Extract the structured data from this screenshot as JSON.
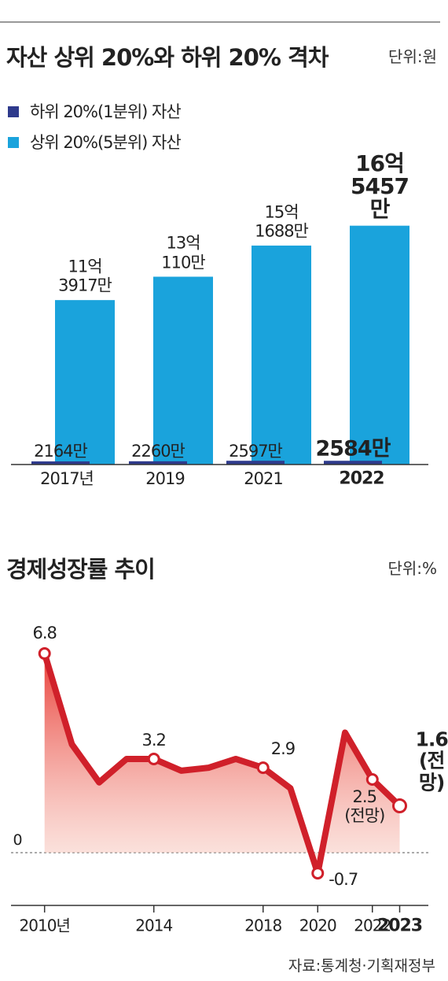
{
  "source": "자료:통계청·기획재정부",
  "chart_data": [
    {
      "type": "bar",
      "title": "자산 상위 20%와 하위 20% 격차",
      "unit": "단위:원",
      "categories": [
        "2017년",
        "2019",
        "2021",
        "2022"
      ],
      "series": [
        {
          "name": "하위 20%(1분위) 자산",
          "color": "#2e3a8c",
          "values": [
            2164,
            2260,
            2597,
            2584
          ],
          "value_labels": [
            "2164만",
            "2260만",
            "2597만",
            "2584만"
          ]
        },
        {
          "name": "상위 20%(5분위) 자산",
          "color": "#1aa3dc",
          "values": [
            113917,
            130110,
            151688,
            165457
          ],
          "value_labels": [
            "11억\n3917만",
            "13억\n110만",
            "15억\n1688만",
            "16억\n5457만"
          ]
        }
      ],
      "ylim": [
        0,
        180000
      ]
    },
    {
      "type": "line",
      "title": "경제성장률 추이",
      "unit": "단위:%",
      "x": [
        2010,
        2011,
        2012,
        2013,
        2014,
        2015,
        2016,
        2017,
        2018,
        2019,
        2020,
        2021,
        2022,
        2023
      ],
      "series": [
        {
          "color": "#d0202a",
          "values": [
            6.8,
            3.7,
            2.4,
            3.2,
            3.2,
            2.8,
            2.9,
            3.2,
            2.9,
            2.2,
            -0.7,
            4.1,
            2.5,
            1.6
          ],
          "value_labels": [
            "6.8",
            null,
            null,
            null,
            "3.2",
            null,
            null,
            null,
            "2.9",
            null,
            "-0.7",
            null,
            "2.5\n(전망)",
            "1.6\n(전망)"
          ]
        }
      ],
      "xlim": [
        2008.8,
        2024.05
      ],
      "ylim": [
        -1.8,
        7.5
      ],
      "xticks": [
        {
          "value": 2010,
          "label": "2010년"
        },
        2014,
        2018,
        2020,
        2022,
        2023
      ],
      "yticks": [
        0
      ]
    }
  ]
}
